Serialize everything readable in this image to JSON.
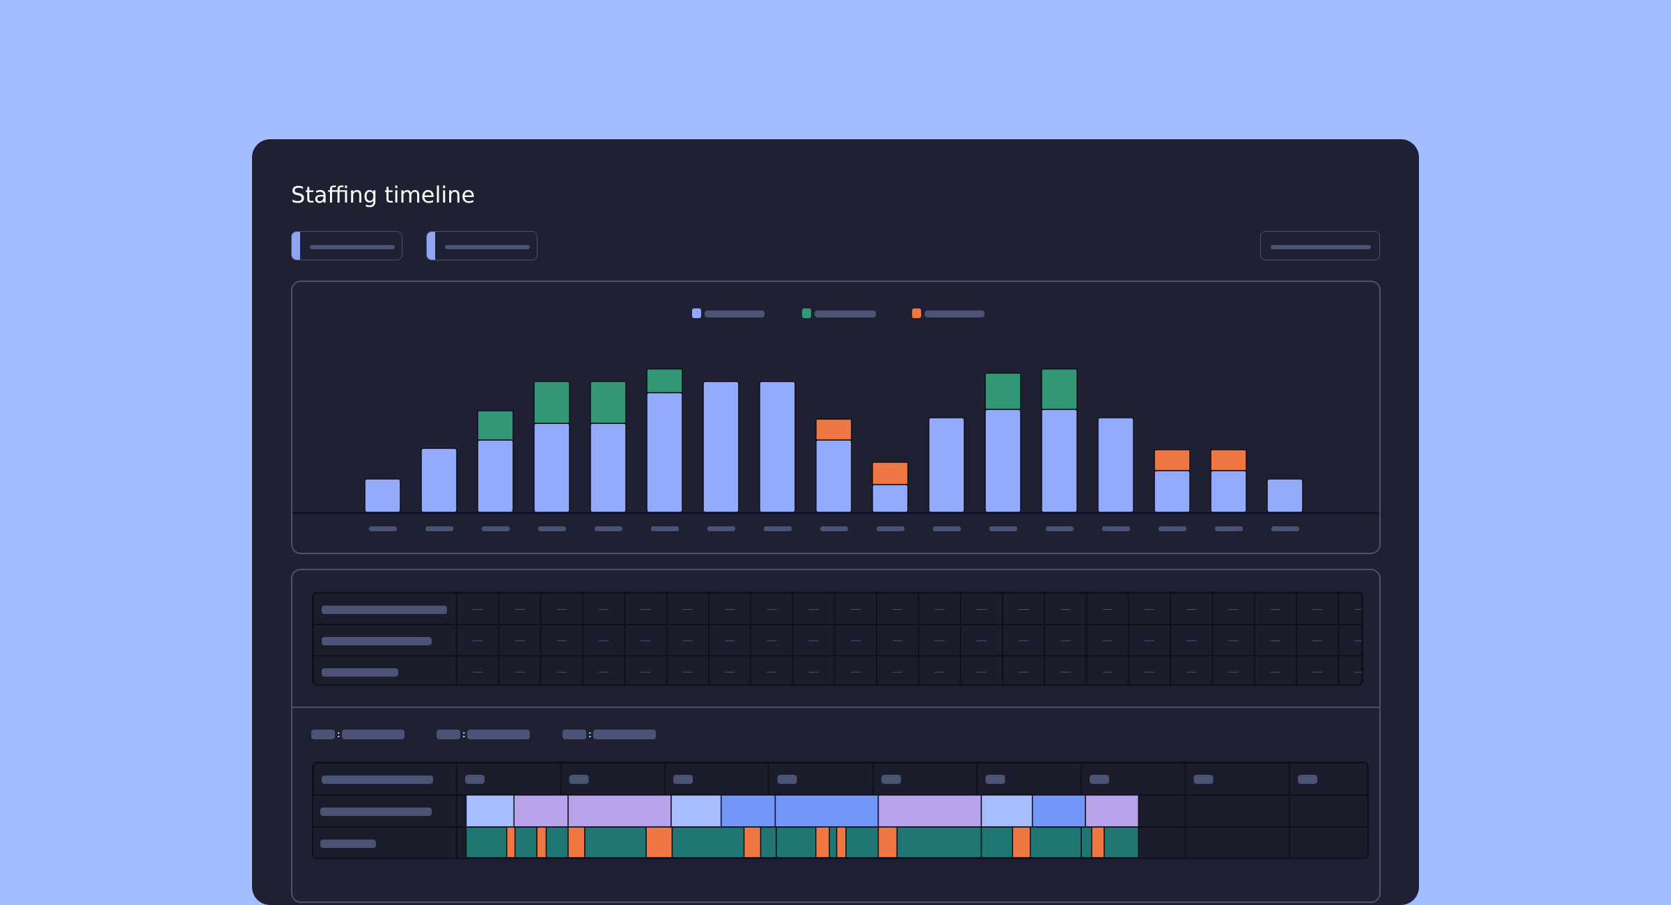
{
  "page": {
    "title": "Staffing timeline"
  },
  "colors": {
    "background": "#a3bdff",
    "panel": "#1f2133",
    "base_bar": "#93a9fb",
    "green_bar": "#339776",
    "orange_bar": "#ef7744",
    "placeholder": "#4b5475",
    "gantt_light_blue": "#a7bdff",
    "gantt_lavender": "#b8a2ea",
    "gantt_blue": "#7196f8",
    "gantt_teal": "#1f7673",
    "gantt_orange": "#ef7744"
  },
  "icons": {
    "legend_marker": "square-swatch-icon"
  },
  "filters": [
    {
      "name": "filter-one",
      "selected": ""
    },
    {
      "name": "filter-two",
      "selected": ""
    }
  ],
  "toolbar": {
    "action_label": ""
  },
  "chart_data": {
    "type": "bar",
    "stacked": true,
    "categories": [
      "",
      "",
      "",
      "",
      "",
      "",
      "",
      "",
      "",
      "",
      "",
      "",
      "",
      "",
      "",
      "",
      ""
    ],
    "series": [
      {
        "color": "#93a9fb",
        "values": [
          48,
          92,
          104,
          128,
          128,
          172,
          188,
          188,
          104,
          40,
          136,
          148,
          148,
          136,
          60,
          60,
          48
        ]
      },
      {
        "color": "#339776",
        "values": [
          0,
          0,
          42,
          60,
          60,
          34,
          0,
          0,
          0,
          0,
          0,
          52,
          58,
          0,
          0,
          0,
          0
        ]
      },
      {
        "color": "#ef7744",
        "values": [
          0,
          0,
          0,
          0,
          0,
          0,
          0,
          0,
          30,
          32,
          0,
          0,
          0,
          0,
          30,
          30,
          0
        ]
      }
    ],
    "ylim": [
      0,
      240
    ],
    "legend": "top-center",
    "grid": false
  },
  "summary_table": {
    "rows": [
      {
        "label": "",
        "cells": [
          "—",
          "—",
          "—",
          "—",
          "—",
          "—",
          "—",
          "—",
          "—",
          "—",
          "—",
          "—",
          "—",
          "—",
          "—",
          "—",
          "—",
          "—",
          "—",
          "—",
          "—",
          "—"
        ]
      },
      {
        "label": "",
        "cells": [
          "—",
          "—",
          "—",
          "—",
          "—",
          "—",
          "—",
          "—",
          "—",
          "—",
          "—",
          "—",
          "—",
          "—",
          "—",
          "—",
          "—",
          "—",
          "—",
          "—",
          "—",
          "—"
        ]
      },
      {
        "label": "",
        "cells": [
          "—",
          "—",
          "—",
          "—",
          "—",
          "—",
          "—",
          "—",
          "—",
          "—",
          "—",
          "—",
          "—",
          "—",
          "—",
          "—",
          "—",
          "—",
          "—",
          "—",
          "—",
          "—"
        ]
      }
    ]
  },
  "gantt": {
    "keys": [
      {
        "key": "",
        "value": ""
      },
      {
        "key": "",
        "value": ""
      },
      {
        "key": "",
        "value": ""
      }
    ],
    "rows": [
      {
        "segments": [
          {
            "start": 0.09,
            "end": 0.55,
            "color": "#a7bdff"
          },
          {
            "start": 0.55,
            "end": 1.07,
            "color": "#b8a2ea"
          },
          {
            "start": 1.07,
            "end": 2.06,
            "color": "#b8a2ea"
          },
          {
            "start": 2.06,
            "end": 2.54,
            "color": "#a7bdff"
          },
          {
            "start": 2.54,
            "end": 3.06,
            "color": "#7196f8"
          },
          {
            "start": 3.06,
            "end": 4.05,
            "color": "#7196f8"
          },
          {
            "start": 4.05,
            "end": 5.04,
            "color": "#b8a2ea"
          },
          {
            "start": 5.04,
            "end": 5.53,
            "color": "#a7bdff"
          },
          {
            "start": 5.53,
            "end": 6.04,
            "color": "#7196f8"
          },
          {
            "start": 6.04,
            "end": 6.55,
            "color": "#b8a2ea"
          }
        ]
      },
      {
        "segments": [
          {
            "start": 0.09,
            "end": 0.48,
            "color": "#1f7673"
          },
          {
            "start": 0.48,
            "end": 0.56,
            "color": "#ef7744"
          },
          {
            "start": 0.56,
            "end": 0.77,
            "color": "#1f7673"
          },
          {
            "start": 0.77,
            "end": 0.86,
            "color": "#ef7744"
          },
          {
            "start": 0.86,
            "end": 1.07,
            "color": "#1f7673"
          },
          {
            "start": 1.07,
            "end": 1.23,
            "color": "#ef7744"
          },
          {
            "start": 1.23,
            "end": 1.82,
            "color": "#1f7673"
          },
          {
            "start": 1.82,
            "end": 2.07,
            "color": "#ef7744"
          },
          {
            "start": 2.07,
            "end": 2.76,
            "color": "#1f7673"
          },
          {
            "start": 2.76,
            "end": 2.92,
            "color": "#ef7744"
          },
          {
            "start": 2.92,
            "end": 3.07,
            "color": "#1f7673"
          },
          {
            "start": 3.07,
            "end": 3.45,
            "color": "#1f7673"
          },
          {
            "start": 3.45,
            "end": 3.58,
            "color": "#ef7744"
          },
          {
            "start": 3.58,
            "end": 3.65,
            "color": "#1f7673"
          },
          {
            "start": 3.65,
            "end": 3.74,
            "color": "#ef7744"
          },
          {
            "start": 3.74,
            "end": 4.05,
            "color": "#1f7673"
          },
          {
            "start": 4.05,
            "end": 4.23,
            "color": "#ef7744"
          },
          {
            "start": 4.23,
            "end": 5.04,
            "color": "#1f7673"
          },
          {
            "start": 5.04,
            "end": 5.34,
            "color": "#1f7673"
          },
          {
            "start": 5.34,
            "end": 5.51,
            "color": "#ef7744"
          },
          {
            "start": 5.51,
            "end": 6.0,
            "color": "#1f7673"
          },
          {
            "start": 6.0,
            "end": 6.1,
            "color": "#1f7673"
          },
          {
            "start": 6.1,
            "end": 6.22,
            "color": "#ef7744"
          },
          {
            "start": 6.22,
            "end": 6.55,
            "color": "#1f7673"
          }
        ]
      }
    ]
  }
}
